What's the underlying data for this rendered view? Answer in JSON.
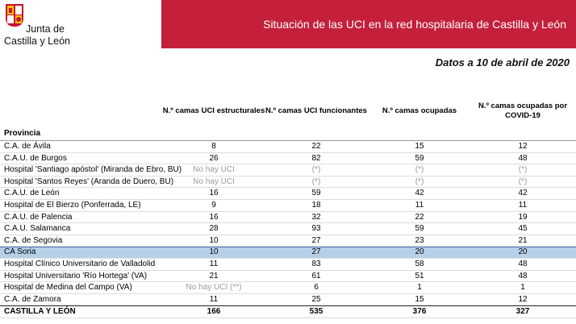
{
  "header": {
    "logo_lines": [
      "Junta de",
      "Castilla y León"
    ],
    "title": "Situación de las UCI en la red hospitalaria de Castilla y León",
    "date": "Datos a 10 de abril de 2020"
  },
  "table": {
    "row_header": "Provincia",
    "columns": [
      "N.º camas UCI estructurales",
      "N.º camas UCI funcionantes",
      "N.º camas ocupadas",
      "N.º camas ocupadas por COVID-19"
    ],
    "rows": [
      {
        "name": "C.A. de Ávila",
        "cells": [
          8,
          22,
          15,
          12
        ]
      },
      {
        "name": "C.A.U. de Burgos",
        "cells": [
          26,
          82,
          59,
          48
        ]
      },
      {
        "name": "Hospital 'Santiago apóstol' (Miranda de Ebro, BU)",
        "cells": [
          "No hay UCI",
          "(*)",
          "(*)",
          "(*)"
        ]
      },
      {
        "name": "Hospital 'Santos Reyes' (Aranda de Duero, BU)",
        "cells": [
          "No hay UCI",
          "(*)",
          "(*)",
          "(*)"
        ]
      },
      {
        "name": "C.A.U. de León",
        "cells": [
          16,
          59,
          42,
          42
        ]
      },
      {
        "name": "Hospital de El Bierzo (Ponferrada, LE)",
        "cells": [
          9,
          18,
          11,
          11
        ]
      },
      {
        "name": "C.A.U. de Palencia",
        "cells": [
          16,
          32,
          22,
          19
        ]
      },
      {
        "name": "C.A.U. Salamanca",
        "cells": [
          28,
          93,
          59,
          45
        ]
      },
      {
        "name": "C.A. de Segovia",
        "cells": [
          10,
          27,
          23,
          21
        ]
      },
      {
        "name": "CA Soria",
        "cells": [
          10,
          27,
          20,
          20
        ],
        "highlight": true
      },
      {
        "name": "Hospital Clínico Universitario de Valladolid",
        "cells": [
          11,
          83,
          58,
          48
        ]
      },
      {
        "name": "Hospital Universitario 'Río Hortega' (VA)",
        "cells": [
          21,
          61,
          51,
          48
        ]
      },
      {
        "name": "Hospital de Medina del Campo (VA)",
        "cells": [
          "No hay UCI (**)",
          6,
          1,
          1
        ]
      },
      {
        "name": "C.A. de Zamora",
        "cells": [
          11,
          25,
          15,
          12
        ]
      }
    ],
    "total": {
      "name": "CASTILLA Y LEÓN",
      "cells": [
        166,
        535,
        376,
        327
      ]
    }
  }
}
